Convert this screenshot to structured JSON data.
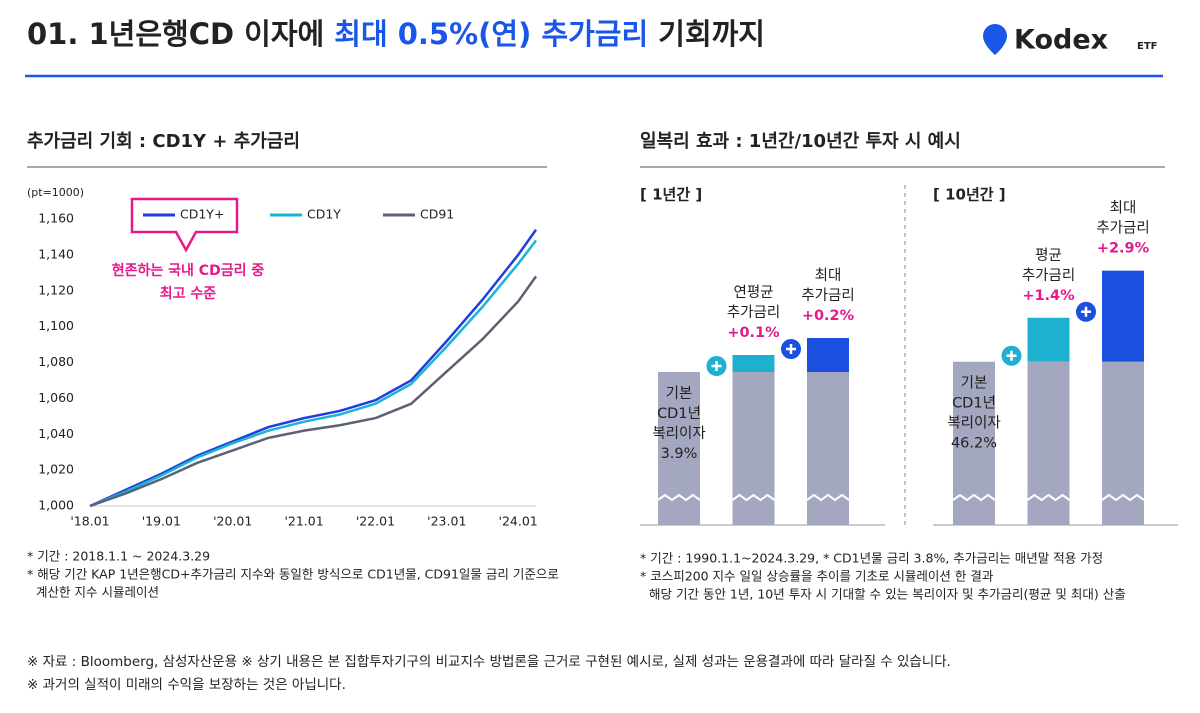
{
  "header": {
    "title_parts": [
      "01. 1년은행CD 이자에 ",
      "최대 0.5%(연) 추가금리",
      " 기회까지"
    ],
    "brand": "Kodex",
    "brand_suffix": "ETF"
  },
  "chart_data": [
    {
      "type": "line",
      "title": "추가금리 기회 : CD1Y + 추가금리",
      "unit_label": "(pt=1000)",
      "x": [
        2018,
        2018.5,
        2019,
        2019.5,
        2020,
        2020.5,
        2021,
        2021.5,
        2022,
        2022.5,
        2023,
        2023.5,
        2024,
        2024.25
      ],
      "xlim": [
        2018,
        2024.25
      ],
      "xticks": [
        {
          "value": 2018,
          "label": "'18.01"
        },
        {
          "value": 2019,
          "label": "'19.01"
        },
        {
          "value": 2020,
          "label": "'20.01"
        },
        {
          "value": 2021,
          "label": "'21.01"
        },
        {
          "value": 2022,
          "label": "'22.01"
        },
        {
          "value": 2023,
          "label": "'23.01"
        },
        {
          "value": 2024,
          "label": "'24.01"
        }
      ],
      "ylim": [
        1000,
        1160
      ],
      "yticks": [
        {
          "value": 1000,
          "label": "1,000"
        },
        {
          "value": 1020,
          "label": "1,020"
        },
        {
          "value": 1040,
          "label": "1,040"
        },
        {
          "value": 1060,
          "label": "1,060"
        },
        {
          "value": 1080,
          "label": "1,080"
        },
        {
          "value": 1100,
          "label": "1,100"
        },
        {
          "value": 1120,
          "label": "1,120"
        },
        {
          "value": 1140,
          "label": "1,140"
        },
        {
          "value": 1160,
          "label": "1,160"
        }
      ],
      "series": [
        {
          "name": "CD1Y+",
          "color": "#1f3fdc",
          "values": [
            1000,
            1009,
            1018,
            1028,
            1036,
            1044,
            1049,
            1053,
            1059,
            1070,
            1092,
            1115,
            1140,
            1154
          ]
        },
        {
          "name": "CD1Y",
          "color": "#1ab4d6",
          "values": [
            1000,
            1008,
            1017,
            1027,
            1035,
            1042,
            1047,
            1051,
            1057,
            1068,
            1089,
            1111,
            1135,
            1148
          ]
        },
        {
          "name": "CD91",
          "color": "#5b6275",
          "values": [
            1000,
            1007,
            1015,
            1024,
            1031,
            1038,
            1042,
            1045,
            1049,
            1057,
            1075,
            1093,
            1114,
            1128
          ]
        }
      ],
      "annotation": {
        "lines": [
          "현존하는 국내 CD금리 중",
          "최고 수준"
        ],
        "color": "#e5198a"
      },
      "notes": [
        {
          "lines": [
            "* 기간 : 2018.1.1 ~ 2024.3.29"
          ]
        },
        {
          "lines": [
            "* 해당 기간 KAP 1년은행CD+추가금리 지수와 동일한 방식으로 CD1년물, CD91일물 금리 기준으로",
            "계산한 지수 시뮬레이션"
          ]
        }
      ]
    },
    {
      "type": "bar",
      "title": "일복리 효과 : 1년간/10년간 투자 시 예시",
      "subtitle": "[ 1년간 ]",
      "ylim": [
        3,
        4.3
      ],
      "broken_axis": true,
      "bars": [
        {
          "segments": [
            {
              "value": 3.9,
              "value_label": "3.9%",
              "label_lines": [
                "기본",
                "CD1년",
                "복리이자"
              ],
              "color": "#a3a8c0"
            }
          ]
        },
        {
          "segments": [
            {
              "value": 3.9,
              "color": "#a3a8c0"
            },
            {
              "value": 0.1,
              "value_label": "+0.1%",
              "label_lines": [
                "연평균",
                "추가금리"
              ],
              "color": "#1db1cf"
            }
          ]
        },
        {
          "segments": [
            {
              "value": 3.9,
              "color": "#a3a8c0"
            },
            {
              "value": 0.2,
              "value_label": "+0.2%",
              "label_lines": [
                "최대",
                "추가금리"
              ],
              "color": "#1b4fe0"
            }
          ]
        }
      ],
      "notes": [
        {
          "lines": [
            "* 기간 : 1990.1.1~2024.3.29, * CD1년물 금리 3.8%, 추가금리는 매년말 적용 가정"
          ]
        },
        {
          "lines": [
            "* 코스피200 지수 일일 상승률을 추이를 기초로 시뮬레이션 한 결과",
            "해당 기간 동안 1년, 10년 투자 시 기대할 수 있는 복리이자 및 추가금리(평균 및 최대) 산출"
          ]
        }
      ]
    },
    {
      "type": "bar",
      "subtitle": "[ 10년간 ]",
      "ylim": [
        41,
        50
      ],
      "broken_axis": true,
      "bars": [
        {
          "segments": [
            {
              "value": 46.2,
              "value_label": "46.2%",
              "label_lines": [
                "기본",
                "CD1년",
                "복리이자"
              ],
              "color": "#a3a8c0"
            }
          ]
        },
        {
          "segments": [
            {
              "value": 46.2,
              "color": "#a3a8c0"
            },
            {
              "value": 1.4,
              "value_label": "+1.4%",
              "label_lines": [
                "평균",
                "추가금리"
              ],
              "color": "#1db1cf"
            }
          ]
        },
        {
          "segments": [
            {
              "value": 46.2,
              "color": "#a3a8c0"
            },
            {
              "value": 2.9,
              "value_label": "+2.9%",
              "label_lines": [
                "최대",
                "추가금리"
              ],
              "color": "#1b4fe0"
            }
          ]
        }
      ]
    }
  ],
  "footer": [
    "※ 자료 : Bloomberg, 삼성자산운용  ※ 상기 내용은 본 집합투자기구의 비교지수 방법론을 근거로 구현된 예시로, 실제 성과는 운용결과에 따라 달라질 수 있습니다.",
    "※ 과거의 실적이 미래의 수익을 보장하는 것은 아닙니다."
  ]
}
